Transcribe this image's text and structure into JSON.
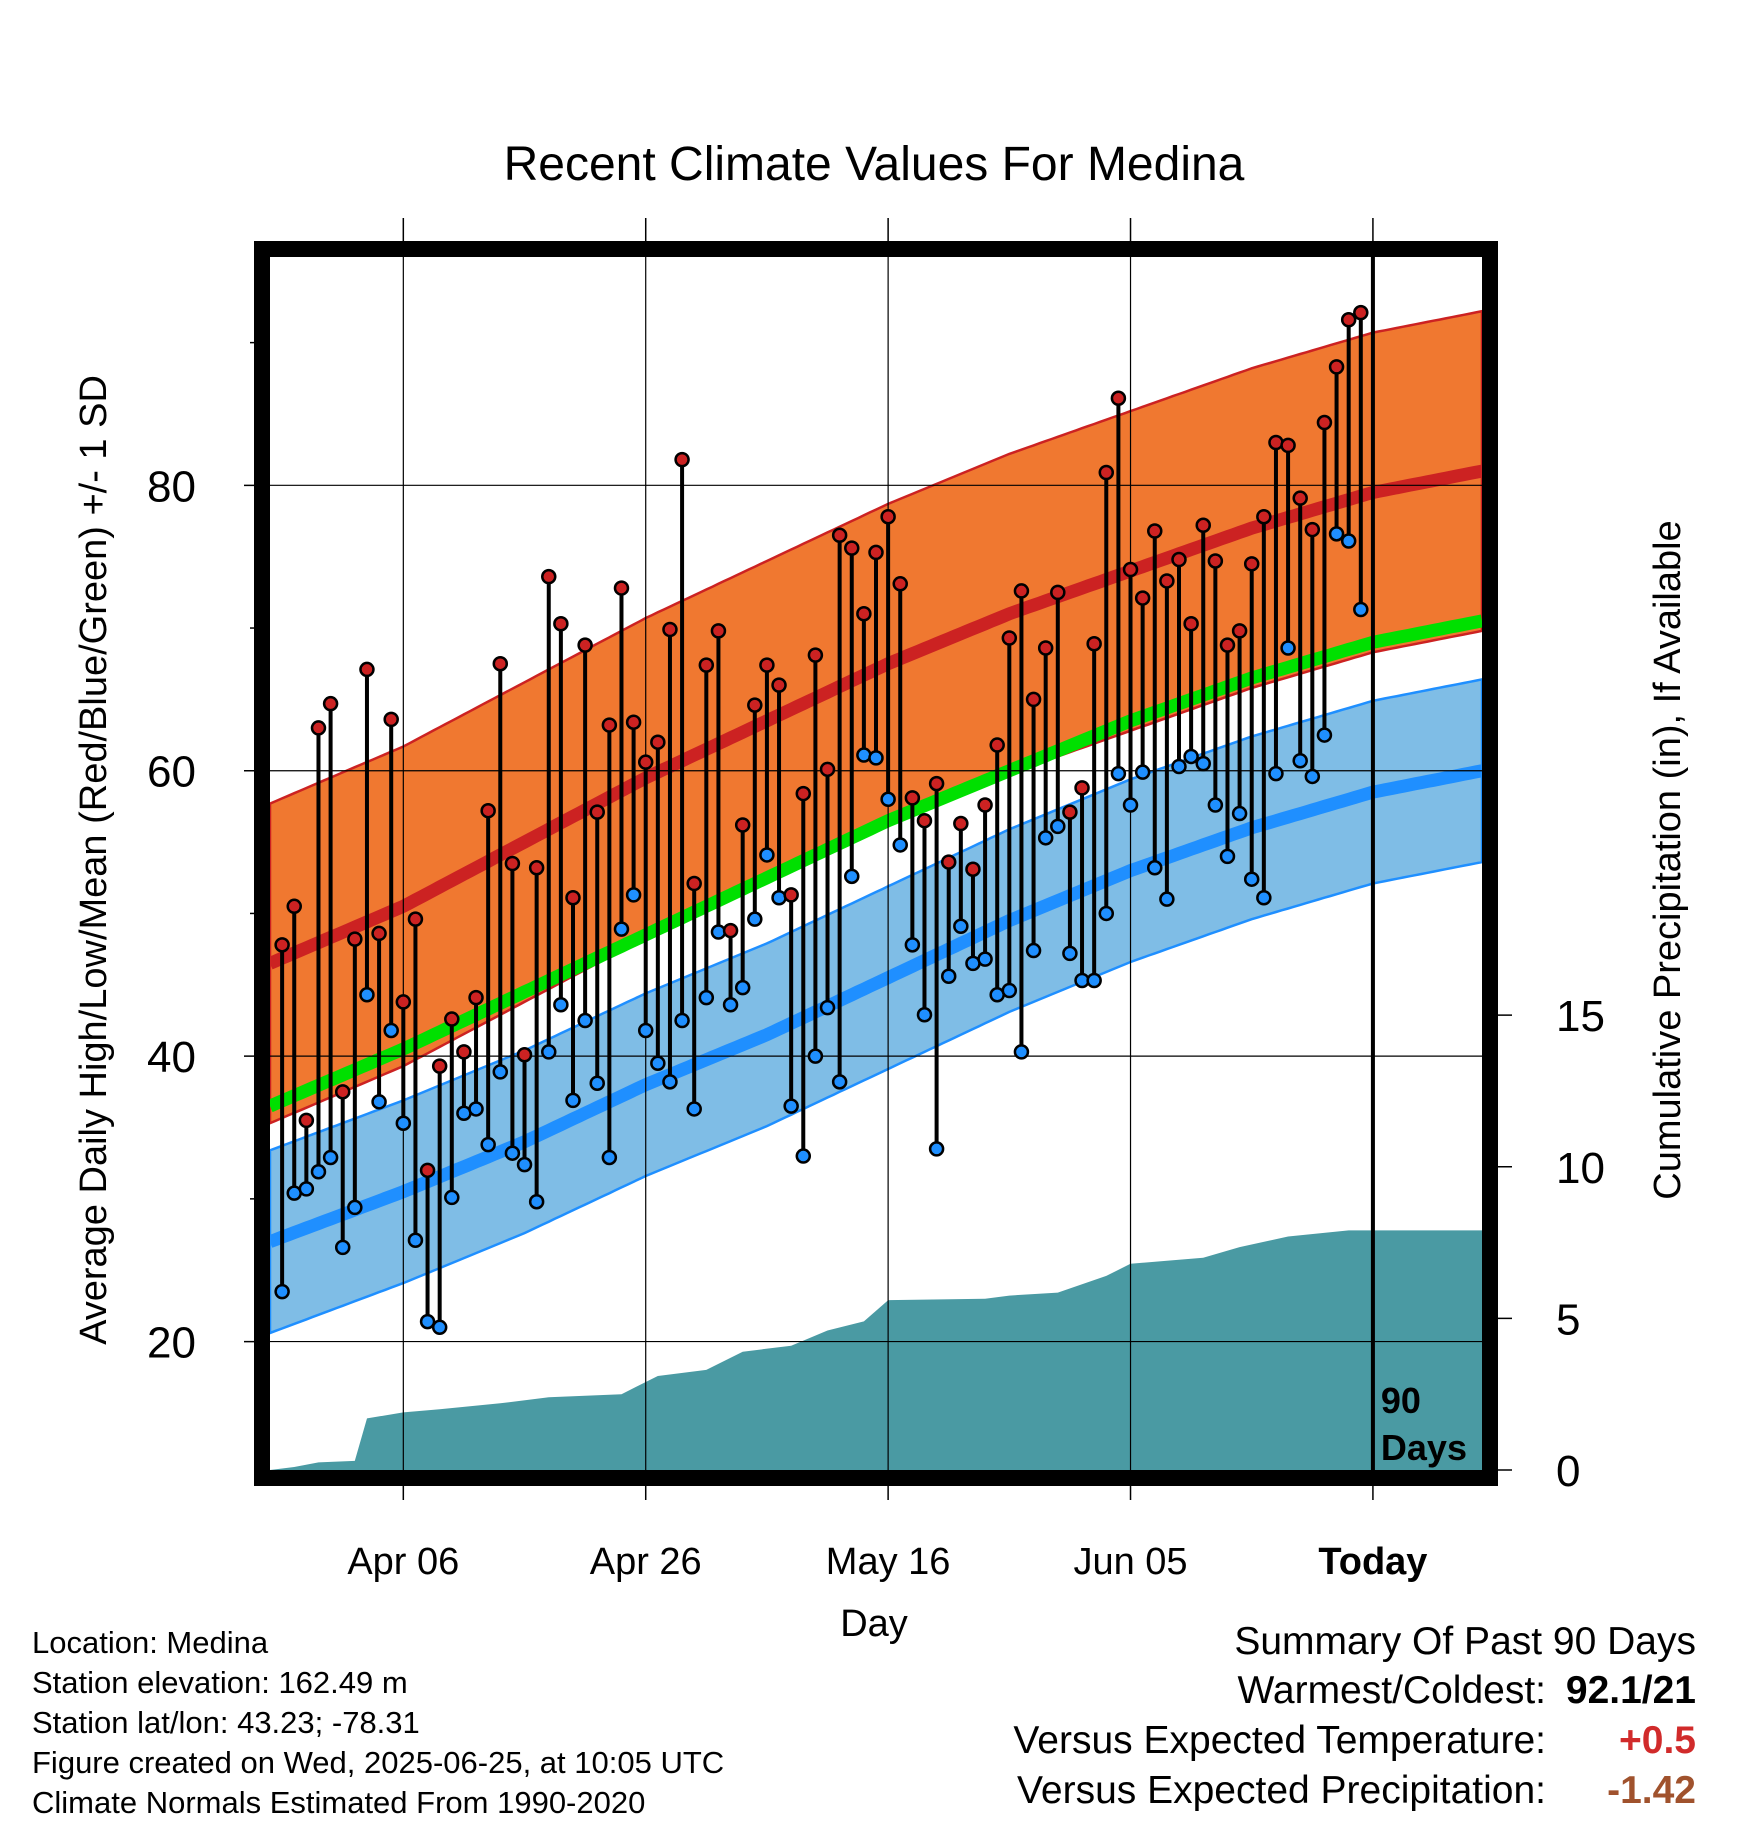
{
  "chart_data": {
    "type": "line",
    "title": "Recent Climate Values For Medina",
    "xlabel": "Day",
    "ylabel": "Average Daily High/Low/Mean (Red/Blue/Green) +/- 1 SD",
    "y2label": "Cumulative Precipitation (in), If Available",
    "x_ticks": [
      "Apr 06",
      "Apr 26",
      "May 16",
      "Jun 05",
      "Today"
    ],
    "y_ticks": [
      20,
      40,
      60,
      80
    ],
    "y2_ticks": [
      0,
      5,
      10,
      15
    ],
    "today_label": [
      "90",
      "Days"
    ],
    "xlim_days_relative_to_today": [
      -91,
      9
    ],
    "ylim": [
      11,
      96
    ],
    "y2lim": [
      0,
      40
    ],
    "normals": {
      "days_relative_to_today": [
        -91,
        -80,
        -70,
        -60,
        -50,
        -40,
        -30,
        -20,
        -10,
        0,
        9
      ],
      "high_mean": [
        46.5,
        50.5,
        55.0,
        59.5,
        63.5,
        67.5,
        71.0,
        74.0,
        77.0,
        79.5,
        81.0
      ],
      "high_sd": 11.2,
      "low_mean": [
        27.0,
        30.5,
        34.0,
        38.0,
        41.5,
        45.5,
        49.5,
        53.0,
        56.0,
        58.5,
        60.0
      ],
      "low_sd": 6.4,
      "mean": [
        36.5,
        40.5,
        44.5,
        48.5,
        52.5,
        56.5,
        60.0,
        63.5,
        66.5,
        69.0,
        70.5
      ]
    },
    "daily_high": [
      47.8,
      50.5,
      35.5,
      63.0,
      64.7,
      37.5,
      48.2,
      67.1,
      48.6,
      63.6,
      43.8,
      49.6,
      32.0,
      39.3,
      42.6,
      40.3,
      44.1,
      57.2,
      67.5,
      53.5,
      40.1,
      53.2,
      73.6,
      70.3,
      51.1,
      68.8,
      57.1,
      63.2,
      72.8,
      63.4,
      60.6,
      62.0,
      69.9,
      81.8,
      52.1,
      67.4,
      69.8,
      48.8,
      56.2,
      64.6,
      67.4,
      66.0,
      51.3,
      58.4,
      68.1,
      60.1,
      76.5,
      75.6,
      71.0,
      75.3,
      77.8,
      73.1,
      58.1,
      56.5,
      59.1,
      53.6,
      56.3,
      53.1,
      57.6,
      61.8,
      69.3,
      72.6,
      65.0,
      68.6,
      72.5,
      57.1,
      58.8,
      68.9,
      80.9,
      86.1,
      74.1,
      72.1,
      76.8,
      73.3,
      74.8,
      70.3,
      77.2,
      74.7,
      68.8,
      69.8,
      74.5,
      77.8,
      83.0,
      82.8,
      79.1,
      76.9,
      84.4,
      88.3,
      91.6,
      92.1
    ],
    "daily_low": [
      23.5,
      30.4,
      30.7,
      31.9,
      32.9,
      26.6,
      29.4,
      44.3,
      36.8,
      41.8,
      35.3,
      27.1,
      21.4,
      21.0,
      30.1,
      36.0,
      36.3,
      33.8,
      38.9,
      33.2,
      32.4,
      29.8,
      40.3,
      43.6,
      36.9,
      42.5,
      38.1,
      32.9,
      48.9,
      51.3,
      41.8,
      39.5,
      38.2,
      42.5,
      36.3,
      44.1,
      48.7,
      43.6,
      44.8,
      49.6,
      54.1,
      51.1,
      36.5,
      33.0,
      40.0,
      43.4,
      38.2,
      52.6,
      61.1,
      60.9,
      58.0,
      54.8,
      47.8,
      42.9,
      33.5,
      45.6,
      49.1,
      46.5,
      46.8,
      44.3,
      44.6,
      40.3,
      47.4,
      55.3,
      56.1,
      47.2,
      45.3,
      45.3,
      50.0,
      59.8,
      57.6,
      59.9,
      53.2,
      51.0,
      60.3,
      61.0,
      60.5,
      57.6,
      54.0,
      57.0,
      52.4,
      51.1,
      59.8,
      68.6,
      60.7,
      59.6,
      62.5,
      76.6,
      76.1,
      71.3
    ],
    "cumulative_precip": [
      [
        -91,
        0
      ],
      [
        -89,
        0.1
      ],
      [
        -87,
        0.25
      ],
      [
        -84,
        0.3
      ],
      [
        -83,
        1.7
      ],
      [
        -80,
        1.9
      ],
      [
        -77,
        2.0
      ],
      [
        -72,
        2.2
      ],
      [
        -68,
        2.4
      ],
      [
        -62,
        2.5
      ],
      [
        -59,
        3.1
      ],
      [
        -55,
        3.3
      ],
      [
        -52,
        3.9
      ],
      [
        -48,
        4.1
      ],
      [
        -45,
        4.6
      ],
      [
        -42,
        4.9
      ],
      [
        -40,
        5.6
      ],
      [
        -32,
        5.65
      ],
      [
        -30,
        5.75
      ],
      [
        -26,
        5.85
      ],
      [
        -22,
        6.4
      ],
      [
        -20,
        6.8
      ],
      [
        -17,
        6.9
      ],
      [
        -14,
        7.0
      ],
      [
        -11,
        7.35
      ],
      [
        -7,
        7.7
      ],
      [
        -2,
        7.9
      ],
      [
        0,
        7.9
      ],
      [
        9,
        7.9
      ]
    ],
    "colors": {
      "high_band": "#f07830",
      "high_line": "#cc2222",
      "low_band": "#7fbde6",
      "low_line": "#1f8fff",
      "mean_line": "#00e000",
      "precip": "#4a9aa3",
      "high_marker": "#cc2222",
      "low_marker": "#1f8fff"
    }
  },
  "footer": {
    "location": "Location: Medina",
    "elevation": "Station elevation: 162.49 m",
    "latlon": "Station lat/lon: 43.23; -78.31",
    "created": "Figure created on Wed, 2025-06-25, at 10:05 UTC",
    "normals": "Climate Normals Estimated From 1990-2020"
  },
  "summary": {
    "title": "Summary Of Past 90 Days",
    "warmest_label": "Warmest/Coldest:",
    "warmest_value": "92.1/21",
    "temp_label": "Versus Expected Temperature:",
    "temp_value": "+0.5",
    "temp_color": "#d12b2b",
    "precip_label": "Versus Expected Precipitation:",
    "precip_value": "-1.42",
    "precip_color": "#a0522d"
  }
}
